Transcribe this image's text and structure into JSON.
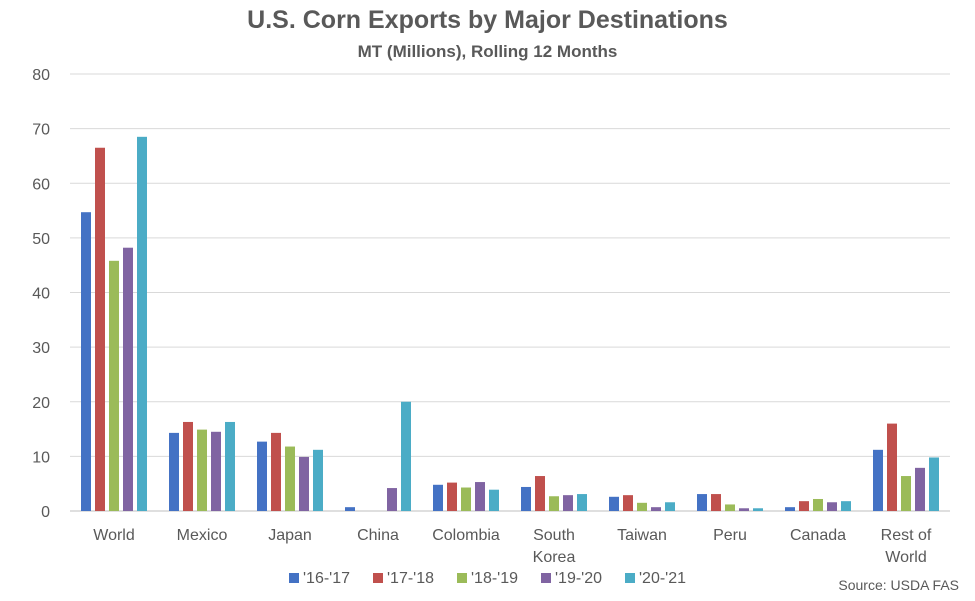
{
  "chart_data": {
    "type": "bar",
    "title": "U.S. Corn Exports by Major Destinations",
    "subtitle": "MT (Millions), Rolling 12 Months",
    "source": "Source: USDA FAS",
    "categories": [
      [
        "World"
      ],
      [
        "Mexico"
      ],
      [
        "Japan"
      ],
      [
        "China"
      ],
      [
        "Colombia"
      ],
      [
        "South",
        "Korea"
      ],
      [
        "Taiwan"
      ],
      [
        "Peru"
      ],
      [
        "Canada"
      ],
      [
        "Rest of",
        "World"
      ]
    ],
    "series": [
      {
        "name": "'16-'17",
        "color": "#4472C4",
        "values": [
          54.7,
          14.3,
          12.7,
          0.7,
          4.8,
          4.4,
          2.6,
          3.1,
          0.7,
          11.2
        ]
      },
      {
        "name": "'17-'18",
        "color": "#C0504D",
        "values": [
          66.5,
          16.3,
          14.3,
          0.0,
          5.2,
          6.4,
          2.9,
          3.1,
          1.8,
          16.0
        ]
      },
      {
        "name": "'18-'19",
        "color": "#9BBB59",
        "values": [
          45.8,
          14.9,
          11.8,
          0.0,
          4.3,
          2.7,
          1.5,
          1.2,
          2.2,
          6.4
        ]
      },
      {
        "name": "'19-'20",
        "color": "#8064A2",
        "values": [
          48.2,
          14.5,
          9.9,
          4.2,
          5.3,
          2.9,
          0.7,
          0.5,
          1.6,
          7.9
        ]
      },
      {
        "name": "'20-'21",
        "color": "#4BACC6",
        "values": [
          68.5,
          16.3,
          11.2,
          20.0,
          3.9,
          3.1,
          1.6,
          0.5,
          1.8,
          9.8
        ]
      }
    ],
    "ylim": [
      0,
      80
    ],
    "yticks": [
      0,
      10,
      20,
      30,
      40,
      50,
      60,
      70,
      80
    ],
    "grid": true,
    "legend": "bottom"
  }
}
